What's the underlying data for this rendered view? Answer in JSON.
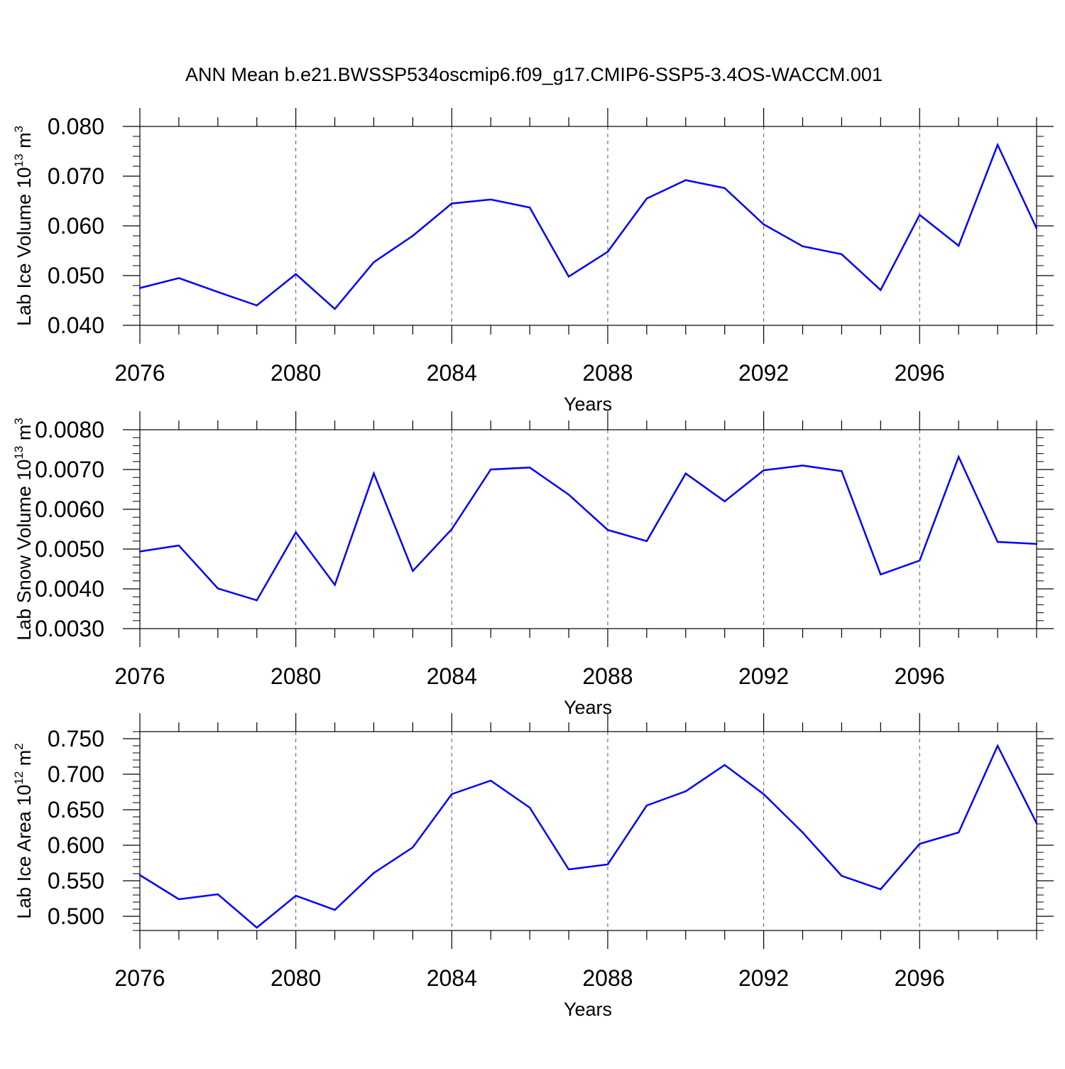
{
  "title": "ANN Mean b.e21.BWSSP534oscmip6.f09_g17.CMIP6-SSP5-3.4OS-WACCM.001",
  "line_color": "#0000ff",
  "chart_data": [
    {
      "type": "line",
      "ylabel": "Lab Ice Volume 10",
      "ylabel_exp": "13",
      "ylabel_unit": " m",
      "ylabel_unit_exp": "3",
      "xlabel": "Years",
      "xlim": [
        2076,
        2099
      ],
      "ylim": [
        0.04,
        0.08
      ],
      "yticks": [
        0.04,
        0.05,
        0.06,
        0.07,
        0.08
      ],
      "ytick_labels": [
        "0.040",
        "0.050",
        "0.060",
        "0.070",
        "0.080"
      ],
      "yminor_step": 0.002,
      "xticks": [
        2076,
        2080,
        2084,
        2088,
        2092,
        2096
      ],
      "xtick_labels": [
        "2076",
        "2080",
        "2084",
        "2088",
        "2092",
        "2096"
      ],
      "x": [
        2076,
        2077,
        2078,
        2079,
        2080,
        2081,
        2082,
        2083,
        2084,
        2085,
        2086,
        2087,
        2088,
        2089,
        2090,
        2091,
        2092,
        2093,
        2094,
        2095,
        2096,
        2097,
        2098,
        2099
      ],
      "values": [
        0.0475,
        0.0495,
        0.0467,
        0.044,
        0.0503,
        0.0433,
        0.0527,
        0.058,
        0.0645,
        0.0653,
        0.0637,
        0.0498,
        0.0548,
        0.0655,
        0.0692,
        0.0676,
        0.0603,
        0.0559,
        0.0543,
        0.0471,
        0.0622,
        0.056,
        0.0763,
        0.0595
      ]
    },
    {
      "type": "line",
      "ylabel": "Lab Snow Volume 10",
      "ylabel_exp": "13",
      "ylabel_unit": " m",
      "ylabel_unit_exp": "3",
      "xlabel": "Years",
      "xlim": [
        2076,
        2099
      ],
      "ylim": [
        0.003,
        0.008
      ],
      "yticks": [
        0.003,
        0.004,
        0.005,
        0.006,
        0.007,
        0.008
      ],
      "ytick_labels": [
        "0.0030",
        "0.0040",
        "0.0050",
        "0.0060",
        "0.0070",
        "0.0080"
      ],
      "yminor_step": 0.0002,
      "xticks": [
        2076,
        2080,
        2084,
        2088,
        2092,
        2096
      ],
      "xtick_labels": [
        "2076",
        "2080",
        "2084",
        "2088",
        "2092",
        "2096"
      ],
      "x": [
        2076,
        2077,
        2078,
        2079,
        2080,
        2081,
        2082,
        2083,
        2084,
        2085,
        2086,
        2087,
        2088,
        2089,
        2090,
        2091,
        2092,
        2093,
        2094,
        2095,
        2096,
        2097,
        2098,
        2099
      ],
      "values": [
        0.00494,
        0.00509,
        0.00401,
        0.00371,
        0.00542,
        0.0041,
        0.0069,
        0.00445,
        0.0055,
        0.007,
        0.00705,
        0.00637,
        0.00548,
        0.0052,
        0.0069,
        0.0062,
        0.00698,
        0.0071,
        0.00696,
        0.00436,
        0.00471,
        0.00732,
        0.00518,
        0.00513
      ]
    },
    {
      "type": "line",
      "ylabel": "Lab Ice Area 10",
      "ylabel_exp": "12",
      "ylabel_unit": " m",
      "ylabel_unit_exp": "2",
      "xlabel": "Years",
      "xlim": [
        2076,
        2099
      ],
      "ylim": [
        0.48,
        0.76
      ],
      "yticks": [
        0.5,
        0.55,
        0.6,
        0.65,
        0.7,
        0.75
      ],
      "ytick_labels": [
        "0.500",
        "0.550",
        "0.600",
        "0.650",
        "0.700",
        "0.750"
      ],
      "yminor_step": 0.01,
      "xticks": [
        2076,
        2080,
        2084,
        2088,
        2092,
        2096
      ],
      "xtick_labels": [
        "2076",
        "2080",
        "2084",
        "2088",
        "2092",
        "2096"
      ],
      "x": [
        2076,
        2077,
        2078,
        2079,
        2080,
        2081,
        2082,
        2083,
        2084,
        2085,
        2086,
        2087,
        2088,
        2089,
        2090,
        2091,
        2092,
        2093,
        2094,
        2095,
        2096,
        2097,
        2098,
        2099
      ],
      "values": [
        0.558,
        0.524,
        0.531,
        0.484,
        0.529,
        0.509,
        0.561,
        0.597,
        0.672,
        0.691,
        0.653,
        0.566,
        0.573,
        0.656,
        0.676,
        0.713,
        0.672,
        0.618,
        0.557,
        0.538,
        0.602,
        0.618,
        0.74,
        0.631
      ]
    }
  ]
}
